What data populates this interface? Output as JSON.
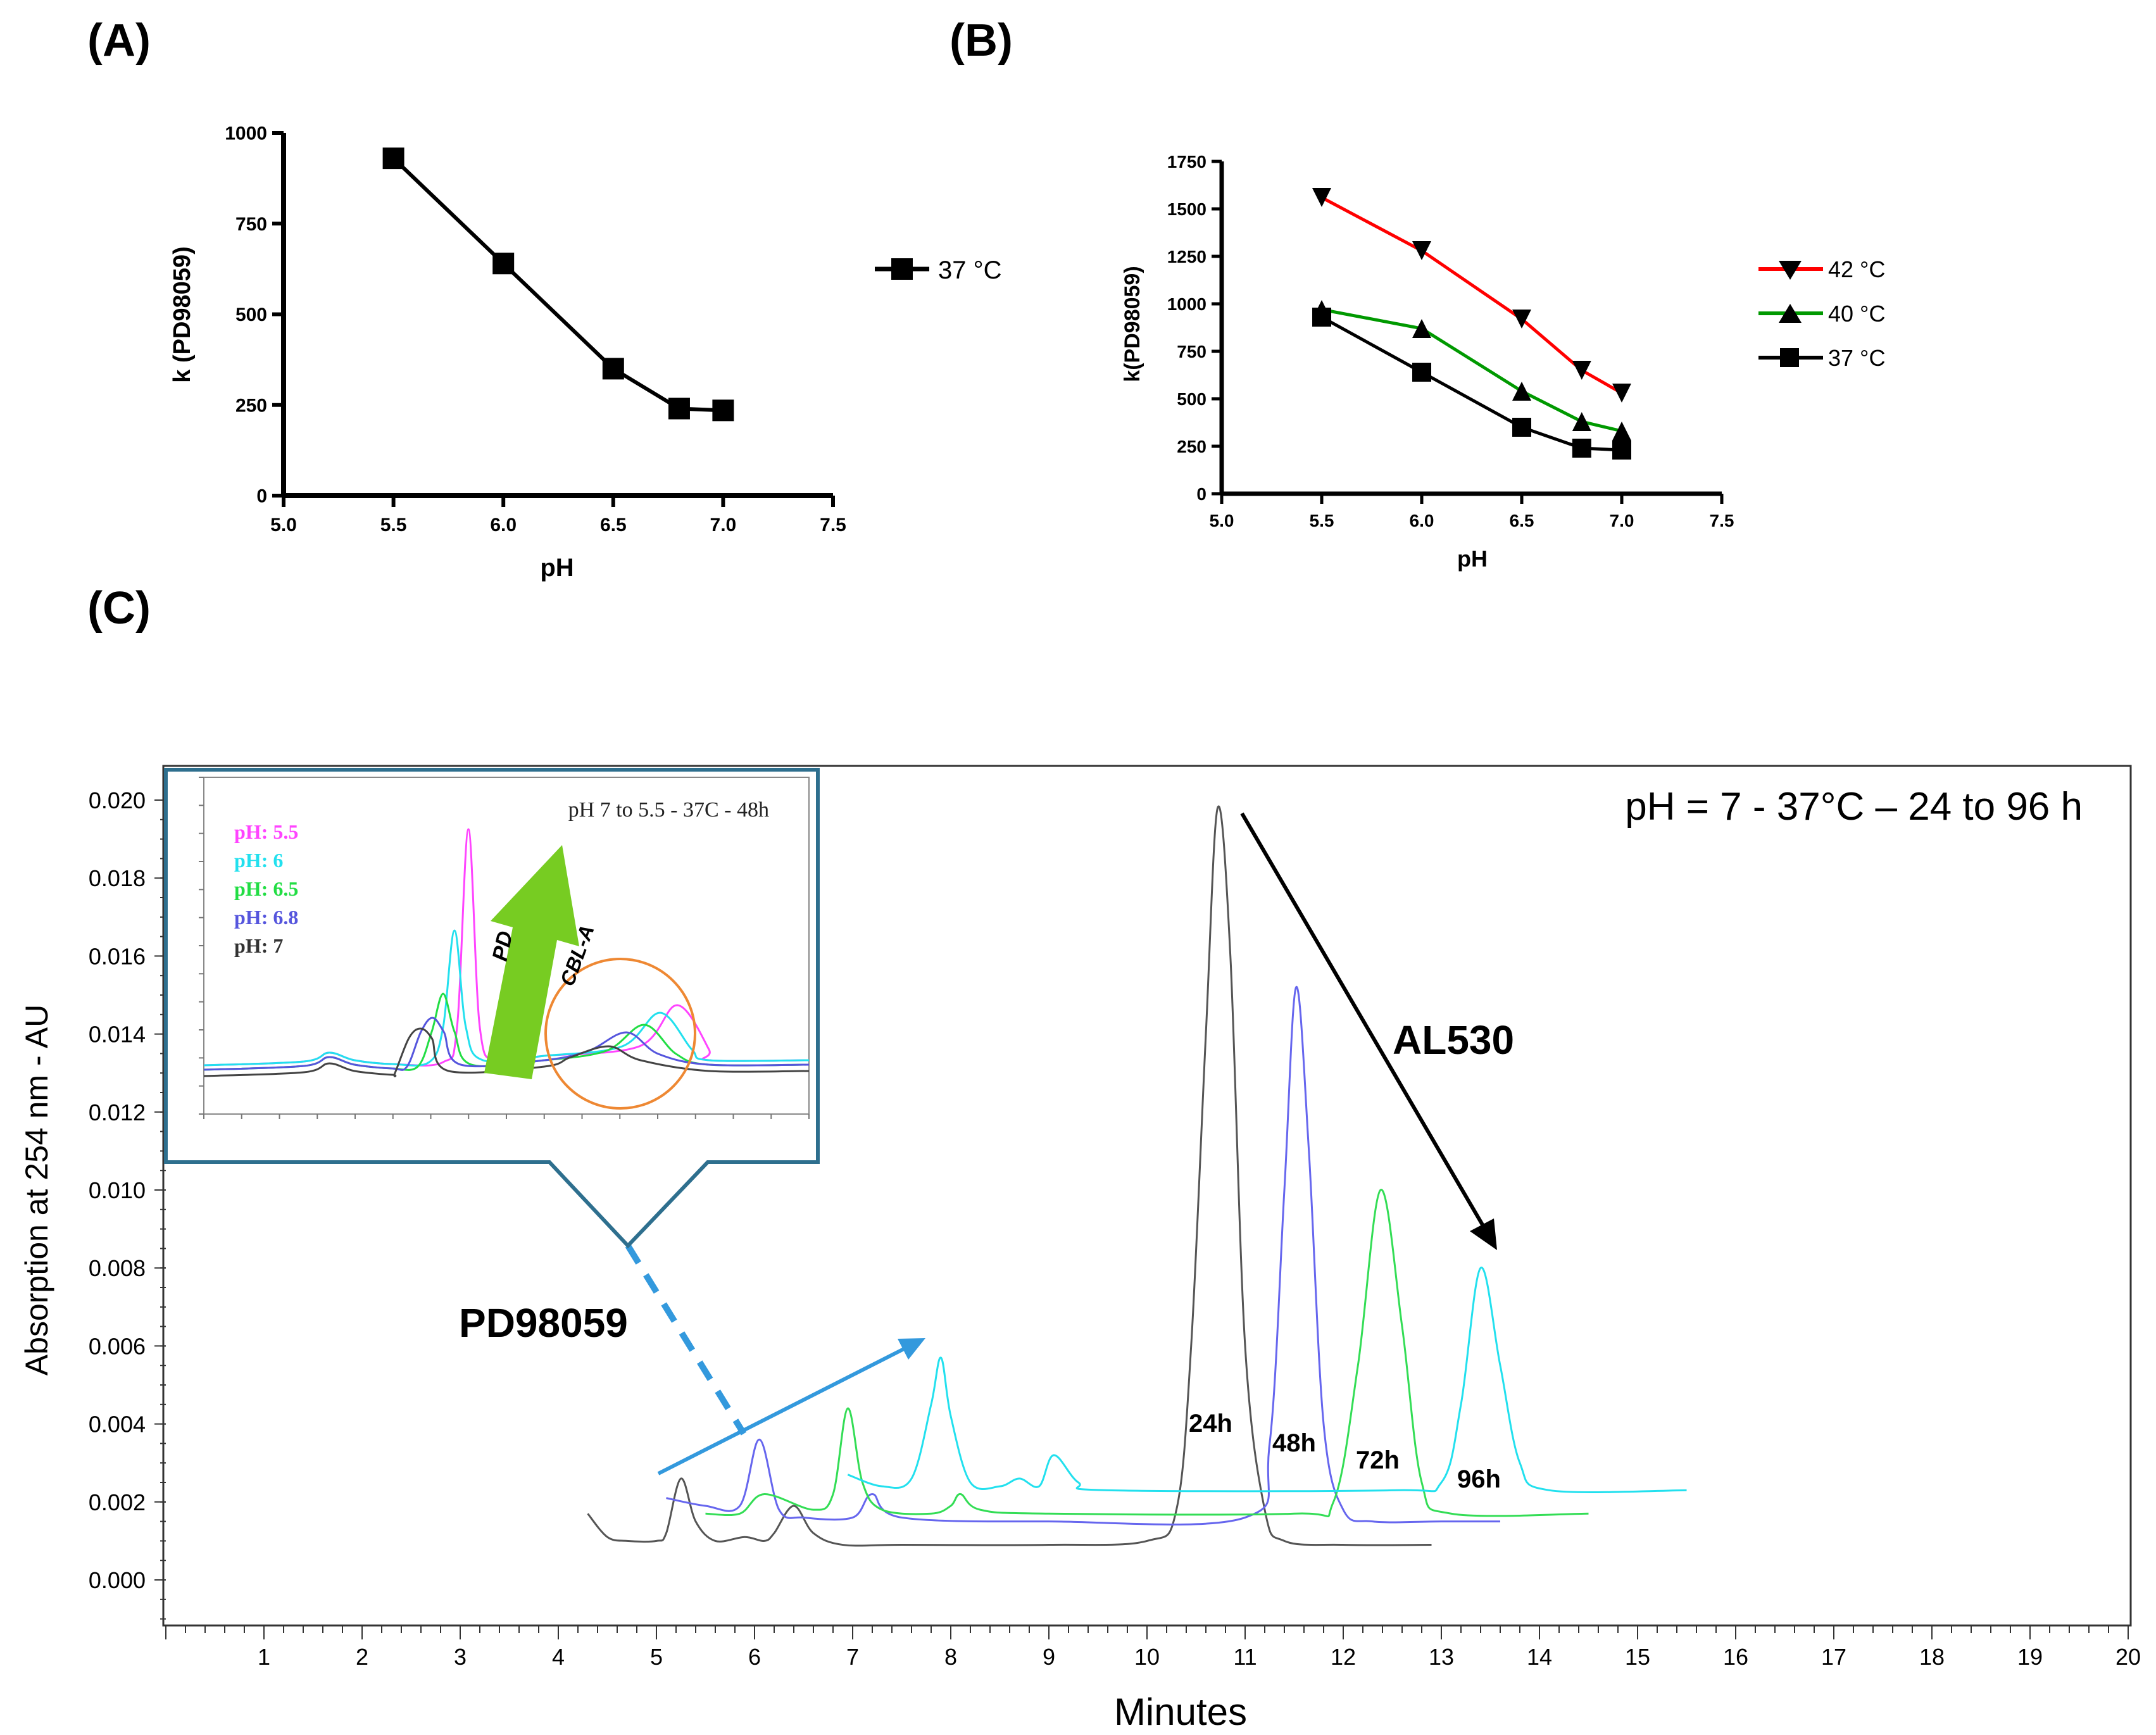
{
  "panel_labels": {
    "a": "(A)",
    "b": "(B)",
    "c": "(C)"
  },
  "colors": {
    "red": "#ff0000",
    "green": "#009900",
    "black": "#000000",
    "blue_annot": "#3399dd",
    "trace_black": "#555555",
    "trace_blue": "#6666ee",
    "trace_green": "#33dd55",
    "trace_cyan": "#22e0ee",
    "inset_border": "#2e6f8e",
    "arrow_green": "#77cc22",
    "orange": "#ee8833",
    "magenta": "#ff44ff"
  },
  "chart_data": [
    {
      "id": "A",
      "type": "line",
      "title": "",
      "xlabel": "pH",
      "ylabel": "k (PD98059)",
      "xlim": [
        5.0,
        7.5
      ],
      "ylim": [
        0,
        1000
      ],
      "x_ticks": [
        "5.0",
        "5.5",
        "6.0",
        "6.5",
        "7.0",
        "7.5"
      ],
      "y_ticks": [
        "0",
        "250",
        "500",
        "750",
        "1000"
      ],
      "series": [
        {
          "name": "37 °C",
          "marker": "square",
          "color": "#000000",
          "x": [
            5.5,
            6.0,
            6.5,
            6.8,
            7.0
          ],
          "y": [
            930,
            640,
            350,
            240,
            235
          ]
        }
      ],
      "legend": [
        "37 °C"
      ]
    },
    {
      "id": "B",
      "type": "line",
      "title": "",
      "xlabel": "pH",
      "ylabel": "k(PD98059)",
      "xlim": [
        5.0,
        7.5
      ],
      "ylim": [
        0,
        1750
      ],
      "x_ticks": [
        "5.0",
        "5.5",
        "6.0",
        "6.5",
        "7.0",
        "7.5"
      ],
      "y_ticks": [
        "0",
        "250",
        "500",
        "750",
        "1000",
        "1250",
        "1500",
        "1750"
      ],
      "series": [
        {
          "name": "42 °C",
          "marker": "triangle-down",
          "color": "#ff0000",
          "x": [
            5.5,
            6.0,
            6.5,
            6.8,
            7.0
          ],
          "y": [
            1560,
            1280,
            920,
            650,
            530
          ]
        },
        {
          "name": "40 °C",
          "marker": "triangle-up",
          "color": "#009900",
          "x": [
            5.5,
            6.0,
            6.5,
            6.8,
            7.0
          ],
          "y": [
            970,
            870,
            540,
            380,
            330
          ]
        },
        {
          "name": "37 °C",
          "marker": "square",
          "color": "#000000",
          "x": [
            5.5,
            6.0,
            6.5,
            6.8,
            7.0
          ],
          "y": [
            930,
            640,
            350,
            240,
            230
          ]
        }
      ],
      "legend": [
        "42 °C",
        "40 °C",
        "37 °C"
      ]
    },
    {
      "id": "C",
      "type": "line",
      "title": "pH = 7 - 37°C – 24 to 96 h",
      "xlabel": "Minutes",
      "ylabel": "Absorption at 254 nm - AU",
      "xlim": [
        0,
        20
      ],
      "ylim": [
        -0.001,
        0.0205
      ],
      "x_ticks": [
        "1",
        "2",
        "3",
        "4",
        "5",
        "6",
        "7",
        "8",
        "9",
        "10",
        "11",
        "12",
        "13",
        "14",
        "15",
        "16",
        "17",
        "18",
        "19",
        "20"
      ],
      "y_ticks": [
        "0.000",
        "0.002",
        "0.004",
        "0.006",
        "0.008",
        "0.010",
        "0.012",
        "0.014",
        "0.016",
        "0.018",
        "0.020"
      ],
      "series": [
        {
          "name": "24h",
          "color": "#555555",
          "x": [
            4.3,
            4.5,
            4.7,
            5.0,
            5.1,
            5.25,
            5.4,
            5.6,
            5.9,
            6.1,
            6.2,
            6.4,
            6.6,
            6.9,
            7.5,
            9.0,
            10.0,
            10.3,
            10.45,
            10.6,
            10.72,
            10.85,
            11.0,
            11.2,
            11.4,
            12.0,
            12.9
          ],
          "y": [
            0.0017,
            0.0011,
            0.001,
            0.001,
            0.0012,
            0.0026,
            0.0015,
            0.001,
            0.0011,
            0.001,
            0.0012,
            0.0019,
            0.0012,
            0.0009,
            0.0009,
            0.0009,
            0.001,
            0.0018,
            0.006,
            0.014,
            0.0198,
            0.016,
            0.006,
            0.0018,
            0.001,
            0.0009,
            0.0009
          ]
        },
        {
          "name": "48h",
          "color": "#6666ee",
          "x": [
            5.1,
            5.5,
            5.85,
            6.05,
            6.25,
            6.5,
            7.0,
            7.2,
            7.5,
            9.0,
            11.0,
            11.25,
            11.4,
            11.52,
            11.65,
            11.8,
            12.0,
            12.3,
            13.0,
            13.6
          ],
          "y": [
            0.0021,
            0.0019,
            0.0019,
            0.0036,
            0.0018,
            0.0016,
            0.0016,
            0.0022,
            0.0016,
            0.0015,
            0.0016,
            0.0035,
            0.01,
            0.0152,
            0.011,
            0.004,
            0.0018,
            0.0015,
            0.0015,
            0.0015
          ]
        },
        {
          "name": "72h",
          "color": "#33dd55",
          "x": [
            5.5,
            5.85,
            6.1,
            6.6,
            6.8,
            6.95,
            7.1,
            7.3,
            7.8,
            8.0,
            8.1,
            8.3,
            9.0,
            11.5,
            11.9,
            12.15,
            12.38,
            12.6,
            12.8,
            13.1,
            14.5
          ],
          "y": [
            0.0017,
            0.0017,
            0.0022,
            0.0018,
            0.0022,
            0.0044,
            0.0025,
            0.0018,
            0.0017,
            0.0019,
            0.0022,
            0.0018,
            0.0017,
            0.0017,
            0.002,
            0.0055,
            0.01,
            0.0065,
            0.0025,
            0.0017,
            0.0017
          ]
        },
        {
          "name": "96h",
          "color": "#22e0ee",
          "x": [
            6.95,
            7.3,
            7.6,
            7.8,
            7.9,
            8.0,
            8.2,
            8.5,
            8.7,
            8.9,
            9.05,
            9.3,
            9.6,
            12.5,
            13.0,
            13.2,
            13.4,
            13.6,
            13.8,
            14.1,
            15.5
          ],
          "y": [
            0.0027,
            0.0024,
            0.0026,
            0.0045,
            0.0057,
            0.0042,
            0.0025,
            0.0024,
            0.0026,
            0.0024,
            0.0032,
            0.0025,
            0.0023,
            0.0023,
            0.0025,
            0.0045,
            0.008,
            0.0055,
            0.003,
            0.0023,
            0.0023
          ]
        }
      ],
      "peak_labels": [
        "24h",
        "48h",
        "72h",
        "96h"
      ],
      "annotations": {
        "al530": "AL530",
        "pd": "PD98059"
      },
      "inset": {
        "title": "pH 7 to 5.5 - 37C - 48h",
        "legend": [
          "pH: 5.5",
          "pH: 6",
          "pH: 6.5",
          "pH: 6.8",
          "pH: 7"
        ],
        "pd_label": "PD",
        "cbl_label": "CBL-A"
      }
    }
  ]
}
